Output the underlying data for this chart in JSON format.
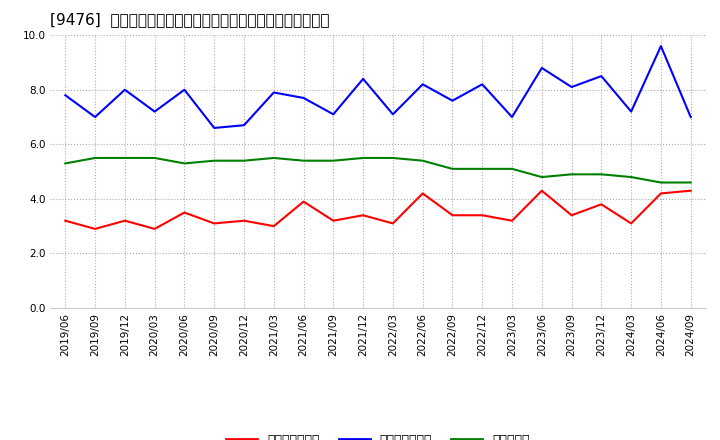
{
  "title": "[9476]  売上債権回転率、買入債務回転率、在庫回転率の推移",
  "dates": [
    "2019/06",
    "2019/09",
    "2019/12",
    "2020/03",
    "2020/06",
    "2020/09",
    "2020/12",
    "2021/03",
    "2021/06",
    "2021/09",
    "2021/12",
    "2022/03",
    "2022/06",
    "2022/09",
    "2022/12",
    "2023/03",
    "2023/06",
    "2023/09",
    "2023/12",
    "2024/03",
    "2024/06",
    "2024/09"
  ],
  "receivables_turnover": [
    3.2,
    2.9,
    3.2,
    2.9,
    3.5,
    3.1,
    3.2,
    3.0,
    3.9,
    3.2,
    3.4,
    3.1,
    4.2,
    3.4,
    3.4,
    3.2,
    4.3,
    3.4,
    3.8,
    3.1,
    4.2,
    4.3
  ],
  "payables_turnover": [
    7.8,
    7.0,
    8.0,
    7.2,
    8.0,
    6.6,
    6.7,
    7.9,
    7.7,
    7.1,
    8.4,
    7.1,
    8.2,
    7.6,
    8.2,
    7.0,
    8.8,
    8.1,
    8.5,
    7.2,
    9.6,
    7.0
  ],
  "inventory_turnover": [
    5.3,
    5.5,
    5.5,
    5.5,
    5.3,
    5.4,
    5.4,
    5.5,
    5.4,
    5.4,
    5.5,
    5.5,
    5.4,
    5.1,
    5.1,
    5.1,
    4.8,
    4.9,
    4.9,
    4.8,
    4.6,
    4.6
  ],
  "receivables_color": "#ff0000",
  "payables_color": "#0000ff",
  "inventory_color": "#008000",
  "ylim": [
    0.0,
    10.0
  ],
  "yticks": [
    0.0,
    2.0,
    4.0,
    6.0,
    8.0,
    10.0
  ],
  "background_color": "#ffffff",
  "grid_color": "#aaaaaa",
  "legend_labels": [
    "売上債権回転率",
    "買入債務回転率",
    "在庫回転率"
  ],
  "title_fontsize": 11,
  "tick_fontsize": 7.5,
  "legend_fontsize": 9
}
